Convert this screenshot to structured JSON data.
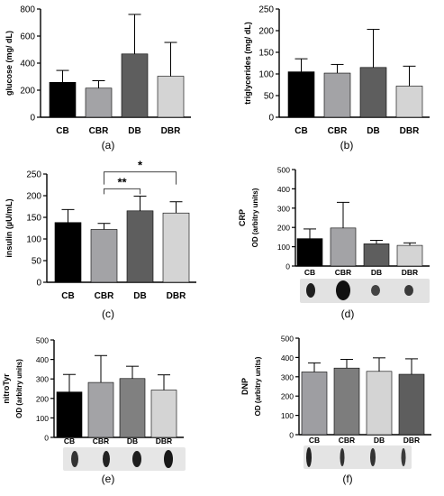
{
  "figure": {
    "panel_letters": [
      "(a)",
      "(b)",
      "(c)",
      "(d)",
      "(e)",
      "(f)"
    ]
  },
  "chart_data": [
    {
      "id": "a",
      "type": "bar",
      "letter": "(a)",
      "ylabel": "glucose (mg/ dL)",
      "ylim": [
        0,
        800
      ],
      "yticks": [
        0,
        200,
        400,
        600,
        800
      ],
      "categories": [
        "CB",
        "CBR",
        "DB",
        "DBR"
      ],
      "values": [
        258,
        215,
        468,
        303
      ],
      "errors": [
        88,
        55,
        292,
        250
      ],
      "colors": [
        "#000000",
        "#a3a3a6",
        "#5e5e5e",
        "#d4d4d4"
      ]
    },
    {
      "id": "b",
      "type": "bar",
      "letter": "(b)",
      "ylabel": "triglycerides (mg/ dL)",
      "ylim": [
        0,
        250
      ],
      "yticks": [
        0,
        50,
        100,
        150,
        200,
        250
      ],
      "categories": [
        "CB",
        "CBR",
        "DB",
        "DBR"
      ],
      "values": [
        105,
        102,
        115,
        72
      ],
      "errors": [
        30,
        20,
        88,
        46
      ],
      "colors": [
        "#000000",
        "#a3a3a6",
        "#5e5e5e",
        "#d4d4d4"
      ]
    },
    {
      "id": "c",
      "type": "bar",
      "letter": "(c)",
      "ylabel": "insulin (µU/mL)",
      "ylim": [
        0,
        250
      ],
      "yticks": [
        0,
        50,
        100,
        150,
        200,
        250
      ],
      "categories": [
        "CB",
        "CBR",
        "DB",
        "DBR"
      ],
      "values": [
        138,
        122,
        165,
        160
      ],
      "errors": [
        30,
        14,
        34,
        26
      ],
      "colors": [
        "#000000",
        "#a3a3a6",
        "#5e5e5e",
        "#d4d4d4"
      ],
      "significance": [
        {
          "from": "CBR",
          "to": "DB",
          "label": "**"
        },
        {
          "from": "CBR",
          "to": "DBR",
          "label": "*"
        }
      ]
    },
    {
      "id": "d",
      "type": "bar",
      "letter": "(d)",
      "ylabel": "CRP",
      "ylabel2": "OD (arbitry units)",
      "ylim": [
        0,
        500
      ],
      "yticks": [
        0,
        100,
        200,
        300,
        400,
        500
      ],
      "categories": [
        "CB",
        "CBR",
        "DB",
        "DBR"
      ],
      "values": [
        142,
        197,
        115,
        107
      ],
      "errors": [
        50,
        133,
        18,
        13
      ],
      "colors": [
        "#000000",
        "#a3a3a6",
        "#5e5e5e",
        "#d4d4d4"
      ]
    },
    {
      "id": "e",
      "type": "bar",
      "letter": "(e)",
      "ylabel": "nitroTyr",
      "ylabel2": "OD (arbitry units)",
      "ylim": [
        0,
        500
      ],
      "yticks": [
        0,
        100,
        200,
        300,
        400,
        500
      ],
      "categories": [
        "CB",
        "CBR",
        "DB",
        "DBR"
      ],
      "values": [
        233,
        282,
        302,
        243
      ],
      "errors": [
        90,
        138,
        63,
        78
      ],
      "colors": [
        "#000000",
        "#a3a3a6",
        "#808080",
        "#d4d4d4"
      ]
    },
    {
      "id": "f",
      "type": "bar",
      "letter": "(f)",
      "ylabel": "DNP",
      "ylabel2": "OD (arbitry units)",
      "ylim": [
        0,
        500
      ],
      "yticks": [
        0,
        100,
        200,
        300,
        400,
        500
      ],
      "categories": [
        "CB",
        "CBR",
        "DB",
        "DBR"
      ],
      "values": [
        325,
        345,
        328,
        313
      ],
      "errors": [
        47,
        45,
        70,
        80
      ],
      "colors": [
        "#9e9ea2",
        "#7d7d7d",
        "#d4d4d4",
        "#5e5e5e"
      ]
    }
  ]
}
